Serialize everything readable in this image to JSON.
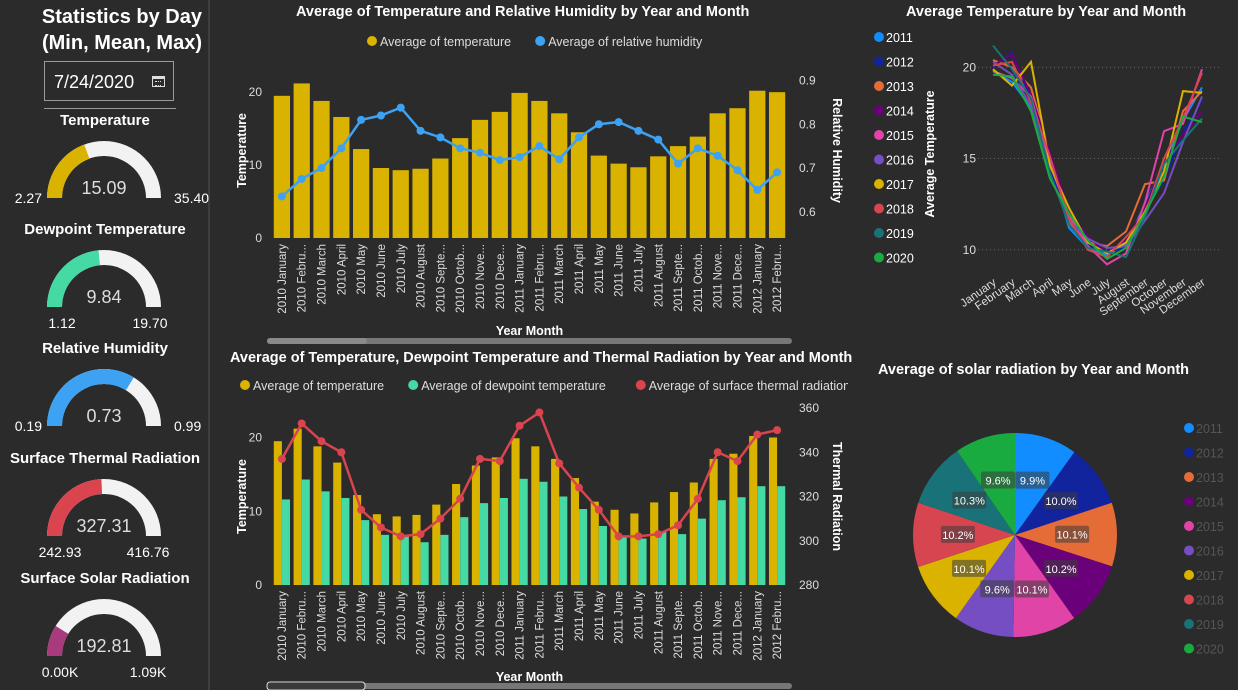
{
  "left_panel": {
    "title": "Statistics by Day\n(Min, Mean, Max)",
    "date_value": "7/24/2020",
    "gauges": [
      {
        "label": "Temperature",
        "min_text": "2.27",
        "mean_text": "15.09",
        "max_text": "35.40",
        "min": 2.27,
        "mean": 15.09,
        "max": 35.4,
        "color": "#d9b300"
      },
      {
        "label": "Dewpoint Temperature",
        "min_text": "1.12",
        "mean_text": "9.84",
        "max_text": "19.70",
        "min": 1.12,
        "mean": 9.84,
        "max": 19.7,
        "color": "#45d9a3"
      },
      {
        "label": "Relative Humidity",
        "min_text": "0.19",
        "mean_text": "0.73",
        "max_text": "0.99",
        "min": 0.19,
        "mean": 0.73,
        "max": 0.99,
        "color": "#3da2f4"
      },
      {
        "label": "Surface Thermal Radiation",
        "min_text": "242.93",
        "mean_text": "327.31",
        "max_text": "416.76",
        "min": 242.93,
        "mean": 327.31,
        "max": 416.76,
        "color": "#d9444f"
      },
      {
        "label": "Surface Solar Radiation",
        "min_text": "0.00K",
        "mean_text": "192.81",
        "max_text": "1.09K",
        "min": 0,
        "mean": 192.81,
        "max": 1090,
        "color": "#a83a7e"
      }
    ]
  },
  "chart_data": [
    {
      "id": "temp_humidity",
      "type": "bar",
      "title": "Average of Temperature and Relative Humidity by Year and Month",
      "xlabel": "Year Month",
      "ylabel": "Temperature",
      "y2label": "Relative Humidity",
      "categories": [
        "2010 January",
        "2010 Febru...",
        "2010 March",
        "2010 April",
        "2010 May",
        "2010 June",
        "2010 July",
        "2010 August",
        "2010 Septe...",
        "2010 Octob...",
        "2010 Nove...",
        "2010 Dece...",
        "2011 January",
        "2011 Febru...",
        "2011 March",
        "2011 April",
        "2011 May",
        "2011 June",
        "2011 July",
        "2011 August",
        "2011 Septe...",
        "2011 Octob...",
        "2011 Nove...",
        "2011 Dece...",
        "2012 January",
        "2012 Febru..."
      ],
      "series": [
        {
          "name": "Average of temperature",
          "kind": "bar",
          "axis": "left",
          "color": "#d9b300",
          "values": [
            19.5,
            21.2,
            18.8,
            16.6,
            12.2,
            9.6,
            9.3,
            9.5,
            10.9,
            13.7,
            16.2,
            17.3,
            19.9,
            18.8,
            17.1,
            14.5,
            11.3,
            10.2,
            9.7,
            11.2,
            12.6,
            13.9,
            17.1,
            17.8,
            20.2,
            20.0
          ]
        },
        {
          "name": "Average of relative humidity",
          "kind": "line",
          "axis": "right",
          "color": "#3da2f4",
          "values": [
            0.635,
            0.675,
            0.7,
            0.745,
            0.81,
            0.82,
            0.838,
            0.785,
            0.77,
            0.745,
            0.735,
            0.718,
            0.725,
            0.75,
            0.72,
            0.77,
            0.8,
            0.805,
            0.785,
            0.765,
            0.71,
            0.745,
            0.728,
            0.695,
            0.65,
            0.69
          ]
        }
      ],
      "ylim": [
        0,
        24
      ],
      "y_ticks": [
        0,
        10,
        20
      ],
      "y2lim": [
        0.54,
        0.94
      ],
      "y2_ticks": [
        "0.6",
        "0.7",
        "0.8",
        "0.9"
      ],
      "legend": "top-center"
    },
    {
      "id": "temp_dew_thermal",
      "type": "bar",
      "title": "Average of Temperature, Dewpoint Temperature and Thermal Radiation by Year and Month",
      "xlabel": "Year Month",
      "ylabel": "Temperature",
      "y2label": "Thermal Radiation",
      "categories": [
        "2010 January",
        "2010 Febru...",
        "2010 March",
        "2010 April",
        "2010 May",
        "2010 June",
        "2010 July",
        "2010 August",
        "2010 Septe...",
        "2010 Octob...",
        "2010 Nove...",
        "2010 Dece...",
        "2011 January",
        "2011 Febru...",
        "2011 March",
        "2011 April",
        "2011 May",
        "2011 June",
        "2011 July",
        "2011 August",
        "2011 Septe...",
        "2011 Octob...",
        "2011 Nove...",
        "2011 Dece...",
        "2012 January",
        "2012 Febru..."
      ],
      "series": [
        {
          "name": "Average of temperature",
          "kind": "bar",
          "axis": "left",
          "color": "#d9b300",
          "values": [
            19.5,
            21.2,
            18.8,
            16.6,
            12.2,
            9.6,
            9.3,
            9.5,
            10.9,
            13.7,
            16.2,
            17.3,
            19.9,
            18.8,
            17.1,
            14.5,
            11.3,
            10.2,
            9.7,
            11.2,
            12.6,
            13.9,
            17.1,
            17.8,
            20.2,
            20.0
          ]
        },
        {
          "name": "Average of dewpoint temperature",
          "kind": "bar",
          "axis": "left",
          "color": "#45d9a3",
          "values": [
            11.6,
            14.3,
            12.7,
            11.8,
            8.8,
            6.8,
            6.7,
            5.8,
            6.8,
            9.2,
            11.1,
            11.8,
            14.4,
            14.0,
            12.0,
            10.3,
            8.0,
            6.5,
            6.3,
            7.2,
            6.9,
            9.0,
            11.5,
            11.9,
            13.4,
            13.4
          ]
        },
        {
          "name": "Average of surface thermal radiation",
          "kind": "line",
          "axis": "right",
          "color": "#d9444f",
          "values": [
            337,
            353,
            345,
            340,
            314,
            306,
            302,
            303,
            310,
            319,
            337,
            336,
            352,
            358,
            335,
            324,
            314,
            302,
            302,
            303,
            307,
            319,
            340,
            336,
            348,
            350
          ]
        }
      ],
      "ylim": [
        0,
        24
      ],
      "y_ticks": [
        0,
        10,
        20
      ],
      "y2lim": [
        280,
        360
      ],
      "y2_ticks": [
        280,
        300,
        320,
        340,
        360
      ],
      "legend": "top-center"
    },
    {
      "id": "temp_by_month",
      "type": "line",
      "title": "Average Temperature by Year and Month",
      "xlabel": "",
      "ylabel": "Average Temperature",
      "categories": [
        "January",
        "February",
        "March",
        "April",
        "May",
        "June",
        "July",
        "August",
        "September",
        "October",
        "November",
        "December"
      ],
      "ylim": [
        9,
        21.5
      ],
      "y_ticks": [
        10,
        15,
        20
      ],
      "legend": "left",
      "series": [
        {
          "name": "2011",
          "color": "#118dff",
          "values": [
            19.8,
            19.2,
            17.8,
            14.8,
            11.2,
            10.1,
            9.7,
            10.3,
            12.5,
            14.7,
            17.1,
            18.9
          ]
        },
        {
          "name": "2012",
          "color": "#12239e",
          "values": [
            20.0,
            20.8,
            18.2,
            14.4,
            11.8,
            10.3,
            9.9,
            10.1,
            12.2,
            13.8,
            16.4,
            18.2
          ]
        },
        {
          "name": "2013",
          "color": "#e66c37",
          "values": [
            20.4,
            20.0,
            18.9,
            15.2,
            11.5,
            10.4,
            10.2,
            11.0,
            13.6,
            13.8,
            17.6,
            18.7
          ]
        },
        {
          "name": "2014",
          "color": "#6b007b",
          "values": [
            20.1,
            20.7,
            18.5,
            15.3,
            12.1,
            10.7,
            9.8,
            10.5,
            12.3,
            14.9,
            16.3,
            17.6
          ]
        },
        {
          "name": "2015",
          "color": "#e044a7",
          "values": [
            19.8,
            19.4,
            18.4,
            14.7,
            11.9,
            10.2,
            9.2,
            9.8,
            12.6,
            16.5,
            16.9,
            19.9
          ]
        },
        {
          "name": "2016",
          "color": "#744ec2",
          "values": [
            20.3,
            19.6,
            17.9,
            14.1,
            11.6,
            10.6,
            10.1,
            10.2,
            11.6,
            13.1,
            15.9,
            18.4
          ]
        },
        {
          "name": "2017",
          "color": "#d9b300",
          "values": [
            19.9,
            19.0,
            20.3,
            14.6,
            12.3,
            10.4,
            9.8,
            10.4,
            12.1,
            14.3,
            18.7,
            18.6
          ]
        },
        {
          "name": "2018",
          "color": "#d64550",
          "values": [
            20.1,
            20.3,
            18.1,
            15.1,
            11.7,
            10.0,
            9.6,
            10.7,
            11.9,
            15.0,
            17.2,
            19.7
          ]
        },
        {
          "name": "2019",
          "color": "#197278",
          "values": [
            21.2,
            19.9,
            18.3,
            14.2,
            11.4,
            10.1,
            9.9,
            9.6,
            11.8,
            14.7,
            16.0,
            17.2
          ]
        },
        {
          "name": "2020",
          "color": "#1aab40",
          "values": [
            19.6,
            19.5,
            17.6,
            13.9,
            12.0,
            10.5,
            9.5,
            10.1,
            12.0,
            14.0,
            17.3,
            17.0
          ]
        }
      ]
    },
    {
      "id": "solar_pie",
      "type": "pie",
      "title": "Average of solar radiation by Year and Month",
      "legend": "right",
      "series": [
        {
          "name": "2011",
          "color": "#118dff",
          "value": 9.9,
          "label": "9.9%"
        },
        {
          "name": "2012",
          "color": "#12239e",
          "value": 10.0,
          "label": "10.0%"
        },
        {
          "name": "2013",
          "color": "#e66c37",
          "value": 10.1,
          "label": "10.1%"
        },
        {
          "name": "2014",
          "color": "#6b007b",
          "value": 10.2,
          "label": "10.2%"
        },
        {
          "name": "2015",
          "color": "#e044a7",
          "value": 10.1,
          "label": "10.1%"
        },
        {
          "name": "2016",
          "color": "#744ec2",
          "value": 9.6,
          "label": "9.6%"
        },
        {
          "name": "2017",
          "color": "#d9b300",
          "value": 10.1,
          "label": "10.1%"
        },
        {
          "name": "2018",
          "color": "#d64550",
          "value": 10.2,
          "label": "10.2%"
        },
        {
          "name": "2019",
          "color": "#197278",
          "value": 10.3,
          "label": "10.3%"
        },
        {
          "name": "2020",
          "color": "#1aab40",
          "value": 9.6,
          "label": "9.6%"
        }
      ]
    }
  ]
}
